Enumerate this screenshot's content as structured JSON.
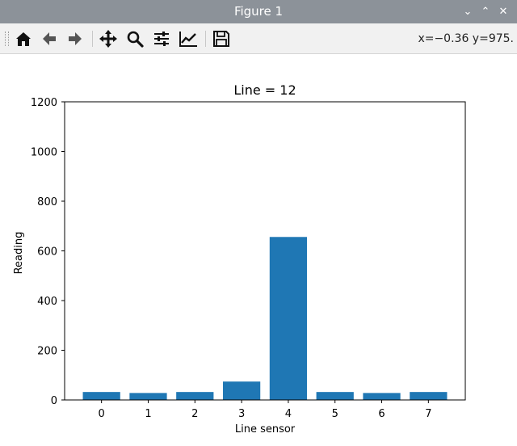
{
  "window": {
    "title": "Figure 1",
    "buttons": [
      "minimize",
      "maximize",
      "close"
    ]
  },
  "toolbar": {
    "tools": [
      {
        "name": "home-icon",
        "label": "Home"
      },
      {
        "name": "back-icon",
        "label": "Back"
      },
      {
        "name": "forward-icon",
        "label": "Forward"
      },
      {
        "name": "pan-icon",
        "label": "Pan"
      },
      {
        "name": "zoom-icon",
        "label": "Zoom"
      },
      {
        "name": "subplots-icon",
        "label": "Configure subplots"
      },
      {
        "name": "edit-axis-icon",
        "label": "Edit axis"
      },
      {
        "name": "save-icon",
        "label": "Save"
      }
    ],
    "coordinates": "x=−0.36 y=975."
  },
  "chart_data": {
    "type": "bar",
    "title": "Line = 12",
    "xlabel": "Line sensor",
    "ylabel": "Reading",
    "categories": [
      "0",
      "1",
      "2",
      "3",
      "4",
      "5",
      "6",
      "7"
    ],
    "values": [
      32,
      28,
      32,
      74,
      656,
      32,
      28,
      32
    ],
    "ylim": [
      0,
      1200
    ],
    "yticks": [
      0,
      200,
      400,
      600,
      800,
      1000,
      1200
    ],
    "bar_color": "#1f77b4",
    "grid": false
  }
}
